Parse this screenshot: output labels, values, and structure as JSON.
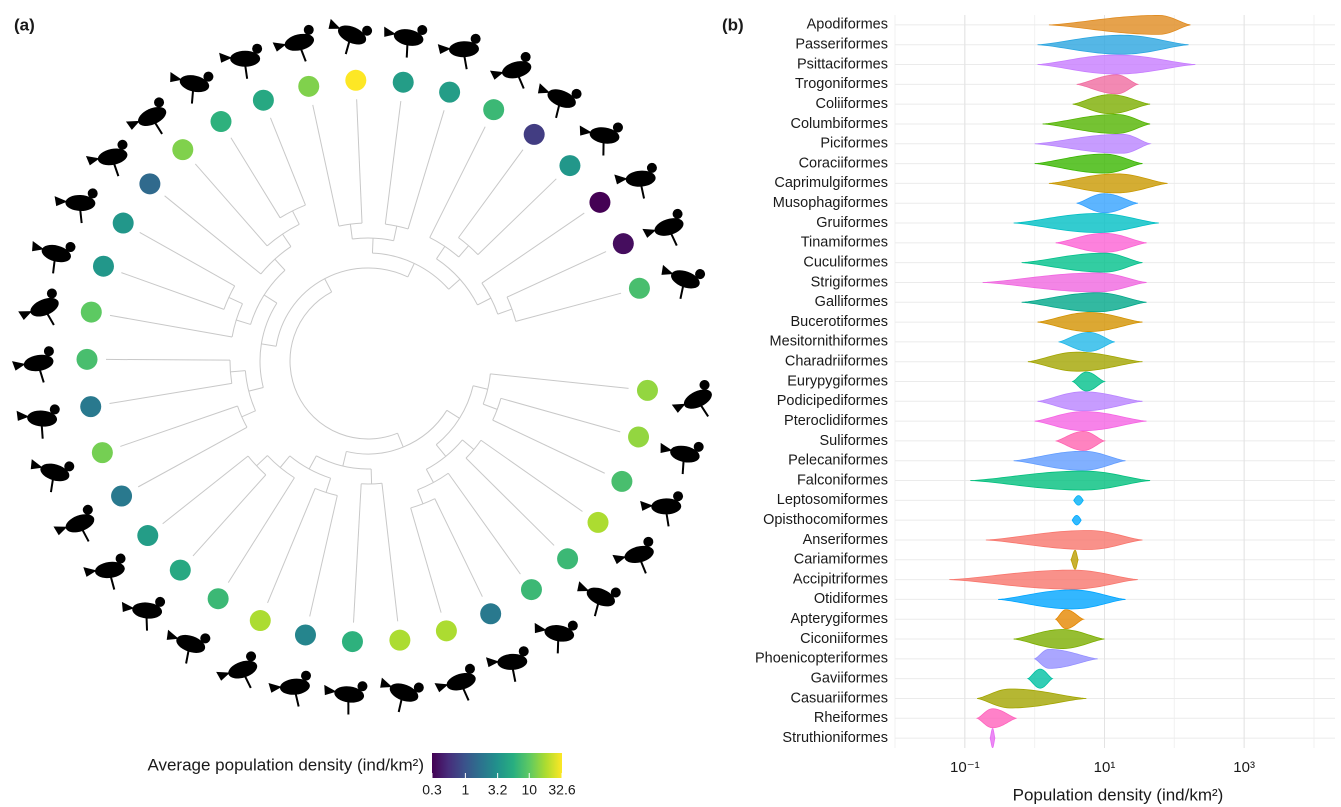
{
  "chart_data": [
    {
      "type": "dendrogram",
      "label": "(a)",
      "tip_values": [
        15,
        15,
        8,
        18,
        7,
        7,
        2,
        18,
        18,
        6,
        2.5,
        18,
        7,
        5,
        4,
        2,
        12,
        2,
        8,
        10,
        3.5,
        3.5,
        1.5,
        13,
        6,
        5,
        13,
        32.6,
        4,
        4,
        7,
        0.7,
        3.5,
        0.3,
        0.35,
        8
      ],
      "colorbar": {
        "title": "Average population density (ind/km²)",
        "lim": [
          0.3,
          32.6
        ],
        "ticks": [
          0.3,
          1,
          3.2,
          10,
          32.6
        ],
        "log": true,
        "colors": [
          "#440154",
          "#472d7b",
          "#3b528b",
          "#2c728e",
          "#21918c",
          "#28ae80",
          "#5ec962",
          "#addc30",
          "#fde725"
        ]
      }
    },
    {
      "type": "violin",
      "label": "(b)",
      "xlabel": "Population density (ind/km²)",
      "log_x": true,
      "grid": true,
      "xlim": [
        0.01,
        20000
      ],
      "xticks": [
        {
          "value": 0.1,
          "label": "10⁻¹"
        },
        {
          "value": 10,
          "label": "10¹"
        },
        {
          "value": 1000,
          "label": "10³"
        }
      ],
      "categories": [
        "Apodiformes",
        "Passeriformes",
        "Psittaciformes",
        "Trogoniformes",
        "Coliiformes",
        "Columbiformes",
        "Piciformes",
        "Coraciiformes",
        "Caprimulgiformes",
        "Musophagiformes",
        "Gruiformes",
        "Tinamiformes",
        "Cuculiformes",
        "Strigiformes",
        "Galliformes",
        "Bucerotiformes",
        "Mesitornithiformes",
        "Charadriiformes",
        "Eurypygiformes",
        "Podicipediformes",
        "Pteroclidiformes",
        "Suliformes",
        "Pelecaniformes",
        "Falconiformes",
        "Leptosomiformes",
        "Opisthocomiformes",
        "Anseriformes",
        "Cariamiformes",
        "Accipitriformes",
        "Otidiformes",
        "Apterygiformes",
        "Ciconiiformes",
        "Phoenicopteriformes",
        "Gaviiformes",
        "Casuariiformes",
        "Rheiformes",
        "Struthioniformes"
      ],
      "mins": [
        1.6,
        1.1,
        1.1,
        4,
        3.5,
        1.3,
        1,
        1,
        1.6,
        4,
        0.5,
        2,
        0.65,
        0.18,
        0.65,
        1.1,
        2.2,
        0.8,
        3.5,
        1.1,
        1,
        2,
        0.5,
        0.12,
        4,
        3.8,
        0.2,
        3.3,
        0.06,
        0.3,
        2,
        0.5,
        1,
        0.8,
        0.15,
        0.15,
        0.23
      ],
      "values": [
        60,
        18,
        15,
        15,
        12,
        15,
        18,
        10,
        15,
        10,
        8,
        10,
        10,
        8,
        8,
        6,
        6,
        4,
        5.5,
        5,
        5,
        5,
        5,
        5,
        4.2,
        4,
        6,
        3.8,
        3.5,
        3.5,
        2.8,
        2.5,
        1.6,
        1.2,
        0.45,
        0.25,
        0.25
      ],
      "maxs": [
        170,
        160,
        200,
        30,
        45,
        45,
        45,
        35,
        80,
        30,
        60,
        40,
        35,
        40,
        40,
        35,
        14,
        35,
        10,
        35,
        40,
        10,
        20,
        45,
        4.5,
        4.2,
        35,
        4.2,
        30,
        20,
        5,
        10,
        8,
        1.8,
        5.5,
        0.55,
        0.27
      ],
      "colors": [
        "#e08b1f",
        "#2aa5e0",
        "#c77cff",
        "#f06ca0",
        "#7cae00",
        "#53b400",
        "#b983ff",
        "#39b600",
        "#c99800",
        "#35a2ff",
        "#00bfc4",
        "#fc61d5",
        "#00c08b",
        "#f066e0",
        "#00a88a",
        "#d39200",
        "#22b8e8",
        "#a3a500",
        "#00c08b",
        "#b983ff",
        "#f564e3",
        "#ff64b0",
        "#619cff",
        "#00bf7d",
        "#00b0f6",
        "#00a9ff",
        "#f8766d",
        "#bb9d00",
        "#f8766d",
        "#00a5ff",
        "#e58700",
        "#7cae00",
        "#9590ff",
        "#00c1a3",
        "#a3a500",
        "#ff62bc",
        "#e76bf3"
      ]
    }
  ]
}
